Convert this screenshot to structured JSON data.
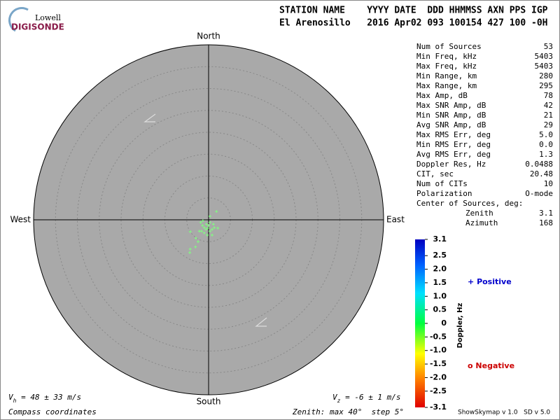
{
  "logo": {
    "top": "Lowell",
    "bottom": "DIGISONDE"
  },
  "header": {
    "line1": "STATION NAME    YYYY DATE  DDD HHMMSS AXN PPS IGP",
    "line2": "El Arenosillo   2016 Apr02 093 100154 427 100 -0H"
  },
  "stats": [
    [
      "Num of Sources",
      "53"
    ],
    [
      "Min Freq, kHz",
      "5403"
    ],
    [
      "Max Freq, kHz",
      "5403"
    ],
    [
      "Min Range, km",
      "280"
    ],
    [
      "Max Range, km",
      "295"
    ],
    [
      "Max Amp, dB",
      "78"
    ],
    [
      "Max SNR Amp, dB",
      "42"
    ],
    [
      "Min SNR Amp, dB",
      "21"
    ],
    [
      "Avg SNR Amp, dB",
      "29"
    ],
    [
      "Max RMS Err, deg",
      "5.0"
    ],
    [
      "Min RMS Err, deg",
      "0.0"
    ],
    [
      "Avg RMS Err, deg",
      "1.3"
    ],
    [
      "Doppler Res, Hz",
      "0.0488"
    ],
    [
      "CIT, sec",
      "20.48"
    ],
    [
      "Num of CITs",
      "10"
    ],
    [
      "Polarization",
      "O-mode"
    ]
  ],
  "center": {
    "title": "Center of Sources, deg:",
    "rows": [
      [
        "Zenith",
        "3.1"
      ],
      [
        "Azimuth",
        "168"
      ]
    ]
  },
  "legend": [
    {
      "symbol": "+",
      "label": "Positive",
      "color": "#0000cc"
    },
    {
      "symbol": "o",
      "label": "Negative",
      "color": "#cc0000"
    }
  ],
  "footer": {
    "vh": {
      "v": "V",
      "sub": "h",
      "rest": " = 48 ± 33 m/s"
    },
    "vz": {
      "v": "V",
      "sub": "z",
      "rest": " = -6 ± 1 m/s"
    },
    "coords": "Compass coordinates",
    "zenith": "Zenith: max 40°  step 5°",
    "version": "ShowSkymap v 1.0   SD v 5.0"
  },
  "chart_data": {
    "type": "skymap",
    "directions": {
      "north": "North",
      "south": "South",
      "east": "East",
      "west": "West"
    },
    "xlim": [
      -40,
      40
    ],
    "ylim": [
      -40,
      40
    ],
    "rticks": [
      5,
      10,
      15,
      20,
      25,
      30,
      35,
      40
    ],
    "background": "#a9a9a9",
    "series": [
      {
        "color": "#80ff80",
        "x": [
          1.8,
          0.3,
          -1.3,
          -0.5,
          -1.0,
          -0.2,
          0.3,
          0.8,
          1.3,
          2.1,
          -1.6,
          -2.1,
          -4.2,
          -2.9,
          -3.0,
          -4.2,
          -4.3,
          -0.3,
          0.8,
          -1.0,
          0,
          1.1,
          -1.4,
          -0.6,
          0.3,
          -2.4,
          -1.8
        ],
        "y": [
          1.9,
          0.8,
          -0.2,
          -1.0,
          -1.8,
          -1.9,
          -2.6,
          -2.2,
          -1.8,
          -1.9,
          -2.6,
          -2.6,
          -2.7,
          -4.2,
          -6.2,
          -6.7,
          -7.5,
          -3.5,
          -3.5,
          -3.0,
          -1.3,
          -1.0,
          -1.3,
          -2.2,
          -0.6,
          -5.0,
          -0.6
        ]
      }
    ],
    "colorbar": {
      "label": "Doppler, Hz",
      "clim": [
        -3.1,
        3.1
      ],
      "ticks": [
        3.1,
        2.5,
        {
          "value": 2,
          "label": "2.0"
        },
        1.5,
        {
          "value": 1,
          "label": "1.0"
        },
        0.5,
        0,
        -0.5,
        {
          "value": -1,
          "label": "-1.0"
        },
        -1.5,
        {
          "value": -2,
          "label": "-2.0"
        },
        -2.5,
        -3.1
      ]
    }
  }
}
